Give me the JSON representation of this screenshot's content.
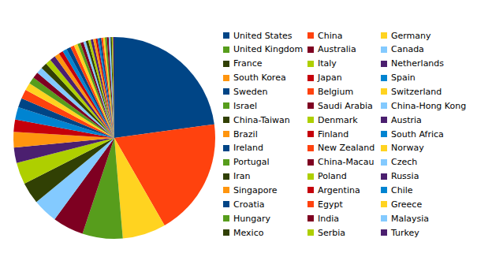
{
  "chart_data": {
    "type": "pie",
    "legend": "right",
    "categories": [
      "United States",
      "China",
      "Germany",
      "United Kingdom",
      "Australia",
      "Canada",
      "France",
      "Italy",
      "Netherlands",
      "South Korea",
      "Japan",
      "Spain",
      "Sweden",
      "Belgium",
      "Switzerland",
      "Israel",
      "Saudi Arabia",
      "China-Hong Kong",
      "China-Taiwan",
      "Denmark",
      "Austria",
      "Brazil",
      "Finland",
      "South Africa",
      "Ireland",
      "New Zealand",
      "Norway",
      "Portugal",
      "China-Macau",
      "Czech",
      "Iran",
      "Poland",
      "Russia",
      "Singapore",
      "Argentina",
      "Chile",
      "Croatia",
      "Egypt",
      "Greece",
      "Hungary",
      "India",
      "Malaysia",
      "Mexico",
      "Serbia",
      "Turkey"
    ],
    "values": [
      23,
      19,
      7,
      6.5,
      5,
      4,
      3.5,
      3.5,
      2.5,
      2.5,
      2,
      2,
      1.5,
      1.5,
      1.2,
      1.1,
      1,
      1,
      1,
      0.9,
      0.9,
      0.8,
      0.7,
      0.7,
      0.7,
      0.6,
      0.6,
      0.5,
      0.5,
      0.4,
      0.4,
      0.4,
      0.4,
      0.4,
      0.3,
      0.3,
      0.3,
      0.3,
      0.3,
      0.3,
      0.3,
      0.3,
      0.2,
      0.2,
      0.2
    ],
    "colors": [
      "#004586",
      "#ff420e",
      "#ffd320",
      "#579d1c",
      "#7e0021",
      "#83caff",
      "#314004",
      "#aecf00",
      "#4b1f6f",
      "#ff950e",
      "#c5000b",
      "#0084d1",
      "#004586",
      "#ff420e",
      "#ffd320",
      "#579d1c",
      "#7e0021",
      "#83caff",
      "#314004",
      "#aecf00",
      "#4b1f6f",
      "#ff950e",
      "#c5000b",
      "#0084d1",
      "#004586",
      "#ff420e",
      "#ffd320",
      "#579d1c",
      "#7e0021",
      "#83caff",
      "#314004",
      "#aecf00",
      "#4b1f6f",
      "#ff950e",
      "#c5000b",
      "#0084d1",
      "#004586",
      "#ff420e",
      "#ffd320",
      "#579d1c",
      "#7e0021",
      "#83caff",
      "#314004",
      "#aecf00",
      "#4b1f6f"
    ]
  }
}
